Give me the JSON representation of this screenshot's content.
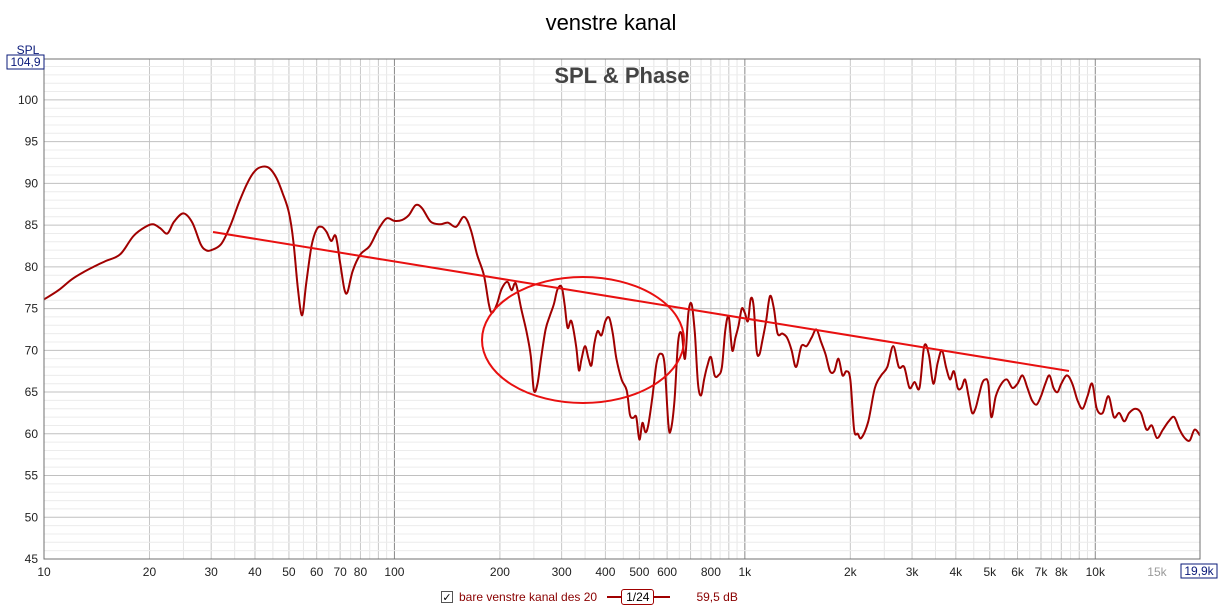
{
  "title": "venstre kanal",
  "chart_data": {
    "type": "line",
    "title": "SPL & Phase",
    "ylabel": "SPL",
    "x_scale": "log",
    "xlim": [
      10,
      19900
    ],
    "ylim": [
      45,
      104.9
    ],
    "x_min_label": "10",
    "x_max_label": "19,9k",
    "y_max_label": "104,9",
    "ytick_values": [
      45,
      50,
      55,
      60,
      65,
      70,
      75,
      80,
      85,
      90,
      95,
      100
    ],
    "ytick_labels": [
      "45",
      "50",
      "55",
      "60",
      "65",
      "70",
      "75",
      "80",
      "85",
      "90",
      "95",
      "100"
    ],
    "xtick_values": [
      20,
      30,
      40,
      50,
      60,
      70,
      80,
      100,
      200,
      300,
      400,
      500,
      600,
      800,
      1000,
      2000,
      3000,
      4000,
      5000,
      6000,
      7000,
      8000,
      10000,
      15000
    ],
    "xtick_labels": [
      "20",
      "30",
      "40",
      "50",
      "60",
      "70",
      "80",
      "100",
      "200",
      "300",
      "400",
      "500",
      "600",
      "800",
      "1k",
      "2k",
      "3k",
      "4k",
      "5k",
      "6k",
      "7k",
      "8k",
      "10k",
      "15k"
    ],
    "grid": true,
    "series": [
      {
        "name": "bare venstre kanal des 20",
        "color": "#a00000",
        "points": [
          [
            10,
            76.1
          ],
          [
            11,
            77.2
          ],
          [
            12,
            78.5
          ],
          [
            13,
            79.4
          ],
          [
            14,
            80.1
          ],
          [
            15,
            80.7
          ],
          [
            16.5,
            81.5
          ],
          [
            18,
            83.7
          ],
          [
            19.5,
            84.8
          ],
          [
            20.5,
            85.1
          ],
          [
            21.5,
            84.6
          ],
          [
            22.5,
            84.0
          ],
          [
            23.5,
            85.4
          ],
          [
            25,
            86.4
          ],
          [
            26.5,
            85.3
          ],
          [
            28,
            82.7
          ],
          [
            29,
            82.0
          ],
          [
            30,
            82.0
          ],
          [
            32,
            82.7
          ],
          [
            34,
            84.9
          ],
          [
            36,
            87.7
          ],
          [
            38,
            90.0
          ],
          [
            40,
            91.5
          ],
          [
            42,
            92.0
          ],
          [
            44,
            91.8
          ],
          [
            46,
            90.7
          ],
          [
            48,
            88.8
          ],
          [
            50,
            86.5
          ],
          [
            51.5,
            83.0
          ],
          [
            53,
            77.5
          ],
          [
            54.5,
            74.2
          ],
          [
            56,
            78.0
          ],
          [
            58,
            82.5
          ],
          [
            60,
            84.5
          ],
          [
            62,
            84.8
          ],
          [
            64,
            84.2
          ],
          [
            66,
            83.1
          ],
          [
            68,
            83.7
          ],
          [
            70,
            80.5
          ],
          [
            72,
            77.3
          ],
          [
            73.5,
            77.0
          ],
          [
            76,
            79.5
          ],
          [
            80,
            81.5
          ],
          [
            85,
            82.5
          ],
          [
            90,
            84.5
          ],
          [
            95,
            85.8
          ],
          [
            100,
            85.5
          ],
          [
            105,
            85.6
          ],
          [
            110,
            86.2
          ],
          [
            115,
            87.4
          ],
          [
            120,
            87.0
          ],
          [
            127,
            85.4
          ],
          [
            135,
            85.1
          ],
          [
            142,
            85.3
          ],
          [
            150,
            84.8
          ],
          [
            158,
            86.0
          ],
          [
            165,
            84.5
          ],
          [
            172,
            81.5
          ],
          [
            180,
            79.0
          ],
          [
            186,
            75.5
          ],
          [
            190,
            74.5
          ],
          [
            196,
            75.5
          ],
          [
            202,
            77.3
          ],
          [
            210,
            78.2
          ],
          [
            216,
            77.2
          ],
          [
            222,
            78.0
          ],
          [
            230,
            75.0
          ],
          [
            238,
            72.3
          ],
          [
            245,
            69.3
          ],
          [
            250,
            65.2
          ],
          [
            256,
            66.0
          ],
          [
            262,
            69.0
          ],
          [
            270,
            72.5
          ],
          [
            278,
            74.2
          ],
          [
            285,
            75.5
          ],
          [
            292,
            77.3
          ],
          [
            300,
            77.6
          ],
          [
            306,
            75.5
          ],
          [
            312,
            72.7
          ],
          [
            320,
            73.5
          ],
          [
            330,
            70.5
          ],
          [
            336,
            67.6
          ],
          [
            342,
            69.0
          ],
          [
            350,
            70.5
          ],
          [
            358,
            69.0
          ],
          [
            365,
            68.2
          ],
          [
            372,
            70.8
          ],
          [
            380,
            72.3
          ],
          [
            390,
            71.8
          ],
          [
            400,
            73.5
          ],
          [
            410,
            73.9
          ],
          [
            420,
            72.0
          ],
          [
            430,
            69.0
          ],
          [
            445,
            66.5
          ],
          [
            460,
            65.2
          ],
          [
            470,
            62.3
          ],
          [
            480,
            61.9
          ],
          [
            490,
            62.0
          ],
          [
            500,
            59.3
          ],
          [
            510,
            61.3
          ],
          [
            520,
            60.2
          ],
          [
            530,
            61.0
          ],
          [
            545,
            64.5
          ],
          [
            560,
            68.5
          ],
          [
            575,
            69.6
          ],
          [
            590,
            68.3
          ],
          [
            605,
            61.1
          ],
          [
            615,
            60.5
          ],
          [
            630,
            64.0
          ],
          [
            645,
            71.0
          ],
          [
            660,
            72.0
          ],
          [
            675,
            69.0
          ],
          [
            690,
            74.5
          ],
          [
            705,
            75.5
          ],
          [
            720,
            72.0
          ],
          [
            735,
            66.0
          ],
          [
            750,
            64.6
          ],
          [
            765,
            66.5
          ],
          [
            780,
            68.0
          ],
          [
            800,
            69.2
          ],
          [
            820,
            67.0
          ],
          [
            840,
            67.0
          ],
          [
            860,
            68.0
          ],
          [
            880,
            72.5
          ],
          [
            900,
            74.0
          ],
          [
            920,
            70.0
          ],
          [
            940,
            71.5
          ],
          [
            960,
            73.0
          ],
          [
            980,
            75.0
          ],
          [
            1000,
            74.5
          ],
          [
            1020,
            73.5
          ],
          [
            1040,
            76.2
          ],
          [
            1060,
            75.2
          ],
          [
            1080,
            70.0
          ],
          [
            1100,
            69.5
          ],
          [
            1120,
            71.0
          ],
          [
            1150,
            73.5
          ],
          [
            1180,
            76.5
          ],
          [
            1210,
            75.0
          ],
          [
            1240,
            72.0
          ],
          [
            1280,
            72.0
          ],
          [
            1320,
            71.5
          ],
          [
            1360,
            70.0
          ],
          [
            1400,
            68.0
          ],
          [
            1450,
            70.5
          ],
          [
            1500,
            70.5
          ],
          [
            1550,
            71.5
          ],
          [
            1600,
            72.5
          ],
          [
            1650,
            71.0
          ],
          [
            1700,
            69.5
          ],
          [
            1750,
            67.5
          ],
          [
            1800,
            67.5
          ],
          [
            1850,
            69.0
          ],
          [
            1900,
            67.0
          ],
          [
            1950,
            67.5
          ],
          [
            2000,
            66.5
          ],
          [
            2050,
            60.5
          ],
          [
            2100,
            60.0
          ],
          [
            2150,
            59.5
          ],
          [
            2250,
            61.5
          ],
          [
            2350,
            65.5
          ],
          [
            2450,
            67.0
          ],
          [
            2550,
            68.0
          ],
          [
            2650,
            70.5
          ],
          [
            2750,
            68.0
          ],
          [
            2850,
            68.0
          ],
          [
            2950,
            65.5
          ],
          [
            3050,
            66.2
          ],
          [
            3150,
            65.5
          ],
          [
            3250,
            70.5
          ],
          [
            3350,
            69.5
          ],
          [
            3450,
            66.0
          ],
          [
            3550,
            68.5
          ],
          [
            3650,
            70.0
          ],
          [
            3750,
            68.0
          ],
          [
            3850,
            66.5
          ],
          [
            3950,
            67.5
          ],
          [
            4050,
            65.5
          ],
          [
            4150,
            65.5
          ],
          [
            4250,
            66.5
          ],
          [
            4350,
            64.5
          ],
          [
            4450,
            62.5
          ],
          [
            4550,
            63.0
          ],
          [
            4650,
            64.5
          ],
          [
            4750,
            66.0
          ],
          [
            4850,
            66.5
          ],
          [
            4950,
            66.0
          ],
          [
            5050,
            62.0
          ],
          [
            5200,
            64.5
          ],
          [
            5400,
            66.0
          ],
          [
            5600,
            66.5
          ],
          [
            5800,
            65.5
          ],
          [
            6000,
            66.0
          ],
          [
            6200,
            67.0
          ],
          [
            6400,
            65.5
          ],
          [
            6600,
            64.0
          ],
          [
            6800,
            63.5
          ],
          [
            7000,
            64.5
          ],
          [
            7200,
            66.0
          ],
          [
            7400,
            67.0
          ],
          [
            7600,
            65.5
          ],
          [
            7800,
            65.0
          ],
          [
            8000,
            66.0
          ],
          [
            8300,
            67.0
          ],
          [
            8600,
            66.0
          ],
          [
            8900,
            64.0
          ],
          [
            9200,
            63.0
          ],
          [
            9500,
            64.5
          ],
          [
            9800,
            66.0
          ],
          [
            10100,
            63.0
          ],
          [
            10500,
            62.5
          ],
          [
            10900,
            64.5
          ],
          [
            11300,
            62.0
          ],
          [
            11700,
            62.5
          ],
          [
            12100,
            61.5
          ],
          [
            12500,
            62.5
          ],
          [
            13000,
            63.0
          ],
          [
            13500,
            62.5
          ],
          [
            14000,
            60.5
          ],
          [
            14500,
            61.0
          ],
          [
            15000,
            59.5
          ],
          [
            15600,
            60.5
          ],
          [
            16200,
            61.5
          ],
          [
            16800,
            62.0
          ],
          [
            17400,
            60.5
          ],
          [
            18000,
            59.5
          ],
          [
            18600,
            59.2
          ],
          [
            19200,
            60.5
          ],
          [
            19900,
            59.8
          ]
        ]
      }
    ]
  },
  "legend": {
    "checked": true,
    "check_mark": "✓",
    "name": "bare venstre kanal des 20",
    "smoothing": "1/24",
    "value": "59,5 dB"
  }
}
